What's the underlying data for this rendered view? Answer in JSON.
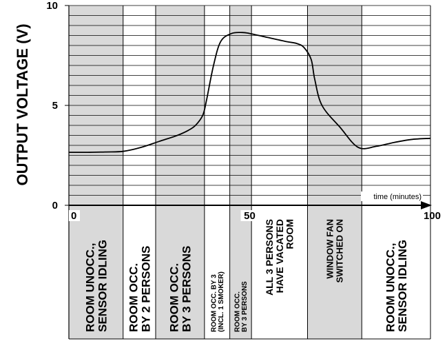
{
  "chart_data": {
    "type": "line",
    "title": "",
    "ylabel": "OUTPUT VOLTAGE (V)",
    "xlabel": "time (minutes)",
    "xlim": [
      0,
      100
    ],
    "ylim": [
      0,
      10
    ],
    "x_ticks": [
      0,
      50,
      100
    ],
    "y_ticks": [
      0,
      5,
      10
    ],
    "grid": true,
    "colors": {
      "line": "#000000",
      "shade": "#d9d9d9",
      "grid": "#000000"
    },
    "series": [
      {
        "x": [
          0,
          5,
          10,
          15,
          20,
          25,
          30,
          33,
          35,
          37,
          38,
          40,
          42,
          45,
          48,
          50,
          55,
          60,
          63,
          65,
          67,
          68,
          70,
          75,
          80,
          85,
          90,
          95,
          100
        ],
        "values": [
          2.65,
          2.65,
          2.67,
          2.7,
          2.9,
          3.2,
          3.5,
          3.75,
          4.0,
          4.5,
          5.2,
          7.0,
          8.2,
          8.6,
          8.65,
          8.6,
          8.4,
          8.2,
          8.1,
          7.9,
          7.3,
          6.3,
          5.0,
          3.9,
          2.9,
          2.95,
          3.15,
          3.3,
          3.35
        ]
      }
    ],
    "phases": [
      {
        "start": 0,
        "end": 15,
        "shaded": true,
        "lines": [
          "ROOM UNOCC.,",
          "SENSOR IDLING"
        ]
      },
      {
        "start": 15,
        "end": 24,
        "shaded": false,
        "lines": [
          "ROOM OCC.",
          "BY 2 PERSONS"
        ]
      },
      {
        "start": 24,
        "end": 37.5,
        "shaded": true,
        "lines": [
          "ROOM OCC.",
          "BY 3 PERSONS"
        ]
      },
      {
        "start": 37.5,
        "end": 44.5,
        "shaded": false,
        "lines": [
          "ROOM OCC. BY 3",
          "(INCL. 1  SMOKER)"
        ]
      },
      {
        "start": 44.5,
        "end": 50.5,
        "shaded": true,
        "lines": [
          "ROOM OCC.",
          "BY 3 PERSONS"
        ]
      },
      {
        "start": 50.5,
        "end": 66,
        "shaded": false,
        "lines": [
          "ALL 3 PERSONS",
          "HAVE VACATED",
          "ROOM"
        ]
      },
      {
        "start": 66,
        "end": 81,
        "shaded": true,
        "lines": [
          "WINDOW FAN",
          "SWITCHED ON"
        ]
      },
      {
        "start": 81,
        "end": 100,
        "shaded": false,
        "lines": [
          "ROOM UNOCC.,",
          "SENSOR IDLING"
        ]
      }
    ]
  }
}
